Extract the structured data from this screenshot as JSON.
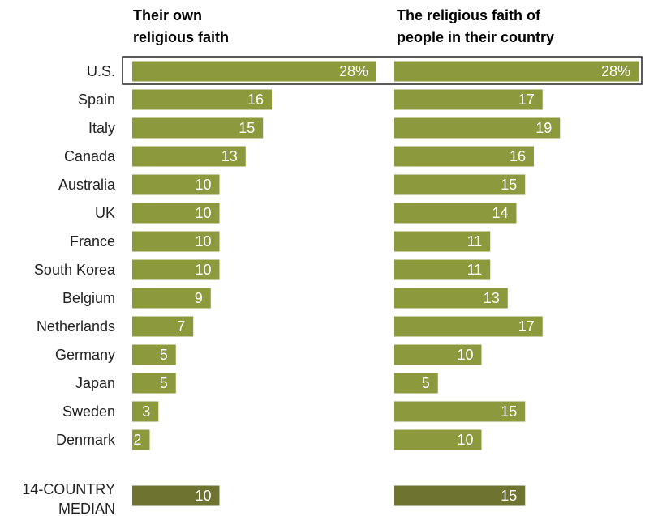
{
  "chart_data": [
    {
      "type": "bar",
      "title": "Their own religious faith",
      "title_lines": [
        "Their own",
        "religious faith"
      ],
      "categories": [
        "U.S.",
        "Spain",
        "Italy",
        "Canada",
        "Australia",
        "UK",
        "France",
        "South Korea",
        "Belgium",
        "Netherlands",
        "Germany",
        "Japan",
        "Sweden",
        "Denmark"
      ],
      "values": [
        28,
        16,
        15,
        13,
        10,
        10,
        10,
        10,
        9,
        7,
        5,
        5,
        3,
        2
      ],
      "value_labels": [
        "28%",
        "16",
        "15",
        "13",
        "10",
        "10",
        "10",
        "10",
        "9",
        "7",
        "5",
        "5",
        "3",
        "2"
      ],
      "median": {
        "label_lines": [
          "14-COUNTRY",
          "MEDIAN"
        ],
        "value": 10,
        "value_label": "10"
      },
      "orientation": "horizontal",
      "highlighted_category": "U.S.",
      "bar_color": "#8c9a3d",
      "median_bar_color": "#6e7330"
    },
    {
      "type": "bar",
      "title": "The religious faith of people in their country",
      "title_lines": [
        "The religious faith of",
        "people in their country"
      ],
      "categories": [
        "U.S.",
        "Spain",
        "Italy",
        "Canada",
        "Australia",
        "UK",
        "France",
        "South Korea",
        "Belgium",
        "Netherlands",
        "Germany",
        "Japan",
        "Sweden",
        "Denmark"
      ],
      "values": [
        28,
        17,
        19,
        16,
        15,
        14,
        11,
        11,
        13,
        17,
        10,
        5,
        15,
        10
      ],
      "value_labels": [
        "28%",
        "17",
        "19",
        "16",
        "15",
        "14",
        "11",
        "11",
        "13",
        "17",
        "10",
        "5",
        "15",
        "10"
      ],
      "median": {
        "value": 15,
        "value_label": "15"
      },
      "orientation": "horizontal",
      "highlighted_category": "U.S.",
      "bar_color": "#8c9a3d",
      "median_bar_color": "#6e7330"
    }
  ]
}
